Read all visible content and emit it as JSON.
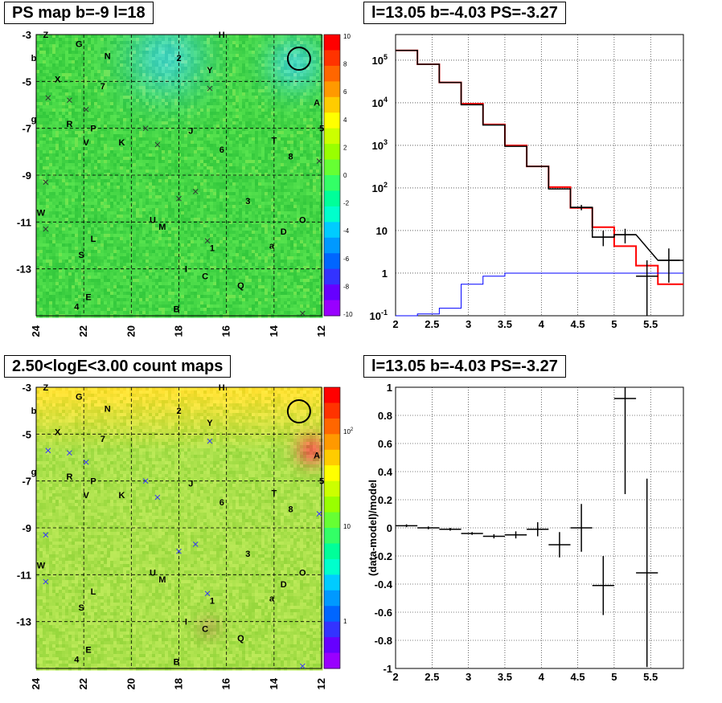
{
  "panels": {
    "ps_map": {
      "title": "PS map b=-9 l=18",
      "x_ticks": [
        "24",
        "22",
        "20",
        "18",
        "16",
        "14",
        "12"
      ],
      "y_ticks": [
        "-3",
        "-5",
        "-7",
        "-9",
        "-11",
        "-13"
      ],
      "palette_ticks": [
        "10",
        "8",
        "6",
        "4",
        "2",
        "0",
        "-2",
        "-4",
        "-6",
        "-8",
        "-10"
      ]
    },
    "spectrum": {
      "title": "l=13.05 b=-4.03 PS=-3.27"
    },
    "count_map": {
      "title": "2.50<logE<3.00 count maps",
      "x_ticks": [
        "24",
        "22",
        "20",
        "18",
        "16",
        "14",
        "12"
      ],
      "y_ticks": [
        "-3",
        "-5",
        "-7",
        "-9",
        "-11",
        "-13"
      ],
      "palette_ticks": [
        "10",
        "10",
        "1"
      ]
    },
    "residual": {
      "title": "l=13.05 b=-4.03 PS=-3.27"
    }
  },
  "source_labels": [
    {
      "t": "Z",
      "l": 23.6,
      "b": -3.0
    },
    {
      "t": "H",
      "l": 16.2,
      "b": -3.0
    },
    {
      "t": "G",
      "l": 22.2,
      "b": -3.4
    },
    {
      "t": "N",
      "l": 21.0,
      "b": -3.9
    },
    {
      "t": "2",
      "l": 18.0,
      "b": -4.0
    },
    {
      "t": "b",
      "l": 24.1,
      "b": -4.0
    },
    {
      "t": "Y",
      "l": 16.7,
      "b": -4.5
    },
    {
      "t": "X",
      "l": 23.1,
      "b": -4.9
    },
    {
      "t": "7",
      "l": 21.2,
      "b": -5.2
    },
    {
      "t": "A",
      "l": 12.2,
      "b": -5.9
    },
    {
      "t": "g",
      "l": 24.1,
      "b": -6.6
    },
    {
      "t": "R",
      "l": 22.6,
      "b": -6.8
    },
    {
      "t": "P",
      "l": 21.6,
      "b": -7.0
    },
    {
      "t": "5",
      "l": 12.0,
      "b": -7.0
    },
    {
      "t": "J",
      "l": 17.5,
      "b": -7.1
    },
    {
      "t": "V",
      "l": 21.9,
      "b": -7.6
    },
    {
      "t": "K",
      "l": 20.4,
      "b": -7.6
    },
    {
      "t": "T",
      "l": 14.0,
      "b": -7.5
    },
    {
      "t": "6",
      "l": 16.2,
      "b": -7.9
    },
    {
      "t": "8",
      "l": 13.3,
      "b": -8.2
    },
    {
      "t": "3",
      "l": 15.1,
      "b": -10.1
    },
    {
      "t": "W",
      "l": 23.8,
      "b": -10.6
    },
    {
      "t": "U",
      "l": 19.1,
      "b": -10.9
    },
    {
      "t": "O",
      "l": 12.8,
      "b": -10.9
    },
    {
      "t": "M",
      "l": 18.7,
      "b": -11.2
    },
    {
      "t": "D",
      "l": 13.6,
      "b": -11.4
    },
    {
      "t": "L",
      "l": 21.6,
      "b": -11.7
    },
    {
      "t": "1",
      "l": 16.6,
      "b": -12.1
    },
    {
      "t": "a",
      "l": 14.1,
      "b": -12.0
    },
    {
      "t": "S",
      "l": 22.1,
      "b": -12.4
    },
    {
      "t": "I",
      "l": 17.7,
      "b": -13.0
    },
    {
      "t": "C",
      "l": 16.9,
      "b": -13.3
    },
    {
      "t": "Q",
      "l": 15.4,
      "b": -13.7
    },
    {
      "t": "E",
      "l": 21.8,
      "b": -14.2
    },
    {
      "t": "4",
      "l": 22.3,
      "b": -14.6
    },
    {
      "t": "B",
      "l": 18.1,
      "b": -14.7
    }
  ],
  "chart_data": [
    {
      "type": "heatmap",
      "title": "PS map b=-9 l=18",
      "xlabel": "",
      "ylabel": "",
      "xlim": [
        24,
        12
      ],
      "ylim": [
        -3,
        -15
      ],
      "x_ticks": [
        24,
        22,
        20,
        18,
        16,
        14,
        12
      ],
      "y_ticks": [
        -3,
        -5,
        -7,
        -9,
        -11,
        -13
      ],
      "z_range": [
        -10,
        10
      ],
      "grid": true,
      "markers": [
        {
          "l": 23.5,
          "b": -5.7
        },
        {
          "l": 22.6,
          "b": -5.8
        },
        {
          "l": 21.9,
          "b": -6.2
        },
        {
          "l": 19.4,
          "b": -7.0
        },
        {
          "l": 18.9,
          "b": -7.7
        },
        {
          "l": 23.6,
          "b": -9.3
        },
        {
          "l": 17.3,
          "b": -9.7
        },
        {
          "l": 18.0,
          "b": -10.0
        },
        {
          "l": 16.7,
          "b": -5.3
        },
        {
          "l": 23.6,
          "b": -11.3
        },
        {
          "l": 16.8,
          "b": -11.8
        },
        {
          "l": 12.1,
          "b": -8.4
        },
        {
          "l": 12.8,
          "b": -14.9
        }
      ],
      "circle": {
        "l": 12.95,
        "b": -4.03
      }
    },
    {
      "type": "line",
      "title": "l=13.05 b=-4.03 PS=-3.27",
      "xlabel": "",
      "ylabel": "",
      "xlim": [
        2,
        5.95
      ],
      "ylim": [
        0.1,
        400000
      ],
      "yscale": "log",
      "x_ticks": [
        2,
        2.5,
        3,
        3.5,
        4,
        4.5,
        5,
        5.5
      ],
      "y_ticks": [
        "10^-1",
        "1",
        "10",
        "10^2",
        "10^3",
        "10^4",
        "10^5"
      ],
      "grid": true,
      "series": [
        {
          "color": "#ff0000",
          "bin_edges": [
            2.0,
            2.3,
            2.6,
            2.9,
            3.2,
            3.5,
            3.8,
            4.1,
            4.4,
            4.7,
            5.0,
            5.3,
            5.6,
            5.95
          ],
          "values": [
            170000,
            80000,
            30000,
            9500,
            3100,
            1000,
            320,
            105,
            34,
            12,
            4.3,
            1.5,
            0.55
          ]
        },
        {
          "color": "#000000",
          "bin_edges": [
            2.0,
            2.3,
            2.6,
            2.9,
            3.2,
            3.5,
            3.8,
            4.1,
            4.4,
            4.7,
            5.0,
            5.3,
            5.6,
            5.95
          ],
          "values": [
            170000,
            80000,
            30000,
            9000,
            3000,
            950,
            320,
            95,
            35,
            7,
            8,
            null,
            2
          ]
        },
        {
          "color": "#0000ff",
          "bin_edges": [
            2.0,
            2.3,
            2.6,
            2.9,
            3.2,
            3.5,
            3.8,
            4.1,
            4.4,
            4.7,
            5.0,
            5.3,
            5.6,
            5.95
          ],
          "values": [
            0.09,
            0.11,
            0.15,
            0.55,
            0.85,
            1.0,
            1.0,
            1.0,
            1.0,
            1.0,
            1.0,
            1.0,
            1.0
          ]
        }
      ],
      "error_points": [
        {
          "x": 4.55,
          "y": 35,
          "xerr": 0.15,
          "ylo": 30,
          "yhi": 40
        },
        {
          "x": 4.85,
          "y": 7,
          "xerr": 0.15,
          "ylo": 4.3,
          "yhi": 10
        },
        {
          "x": 5.15,
          "y": 8,
          "xerr": 0.15,
          "ylo": 5,
          "yhi": 11
        },
        {
          "x": 5.45,
          "y": 0.85,
          "xerr": 0.15,
          "ylo": 0.1,
          "yhi": 2
        },
        {
          "x": 5.75,
          "y": 2,
          "xerr": 0.15,
          "ylo": 0.6,
          "yhi": 3.8
        }
      ]
    },
    {
      "type": "heatmap",
      "title": "2.50<logE<3.00 count maps",
      "xlabel": "",
      "ylabel": "",
      "xlim": [
        24,
        12
      ],
      "ylim": [
        -3,
        -15
      ],
      "x_ticks": [
        24,
        22,
        20,
        18,
        16,
        14,
        12
      ],
      "y_ticks": [
        -3,
        -5,
        -7,
        -9,
        -11,
        -13
      ],
      "z_scale": "log",
      "grid": true
    },
    {
      "type": "scatter",
      "title": "l=13.05 b=-4.03 PS=-3.27",
      "xlabel": "",
      "ylabel": "(data-model)/model",
      "xlim": [
        2,
        5.95
      ],
      "ylim": [
        -1,
        1
      ],
      "x_ticks": [
        2,
        2.5,
        3,
        3.5,
        4,
        4.5,
        5,
        5.5
      ],
      "y_ticks": [
        -1,
        -0.8,
        -0.6,
        -0.4,
        -0.2,
        0,
        0.2,
        0.4,
        0.6,
        0.8,
        1
      ],
      "grid": true,
      "points": [
        {
          "x": 2.15,
          "y": 0.015,
          "xerr": 0.15,
          "yerr": 0.01
        },
        {
          "x": 2.45,
          "y": 0.0,
          "xerr": 0.15,
          "yerr": 0.01
        },
        {
          "x": 2.75,
          "y": -0.01,
          "xerr": 0.15,
          "yerr": 0.01
        },
        {
          "x": 3.05,
          "y": -0.04,
          "xerr": 0.15,
          "yerr": 0.01
        },
        {
          "x": 3.35,
          "y": -0.06,
          "xerr": 0.15,
          "yerr": 0.015
        },
        {
          "x": 3.65,
          "y": -0.05,
          "xerr": 0.15,
          "yerr": 0.025
        },
        {
          "x": 3.95,
          "y": -0.01,
          "xerr": 0.15,
          "yerr": 0.05
        },
        {
          "x": 4.25,
          "y": -0.12,
          "xerr": 0.15,
          "yerr": 0.09
        },
        {
          "x": 4.55,
          "y": 0.0,
          "xerr": 0.15,
          "yerr": 0.17
        },
        {
          "x": 4.85,
          "y": -0.41,
          "xerr": 0.15,
          "yerr": 0.21
        },
        {
          "x": 5.15,
          "y": 0.92,
          "xerr": 0.15,
          "yerr": 0.68
        },
        {
          "x": 5.45,
          "y": -0.32,
          "xerr": 0.15,
          "yerr": 0.67
        }
      ]
    }
  ]
}
